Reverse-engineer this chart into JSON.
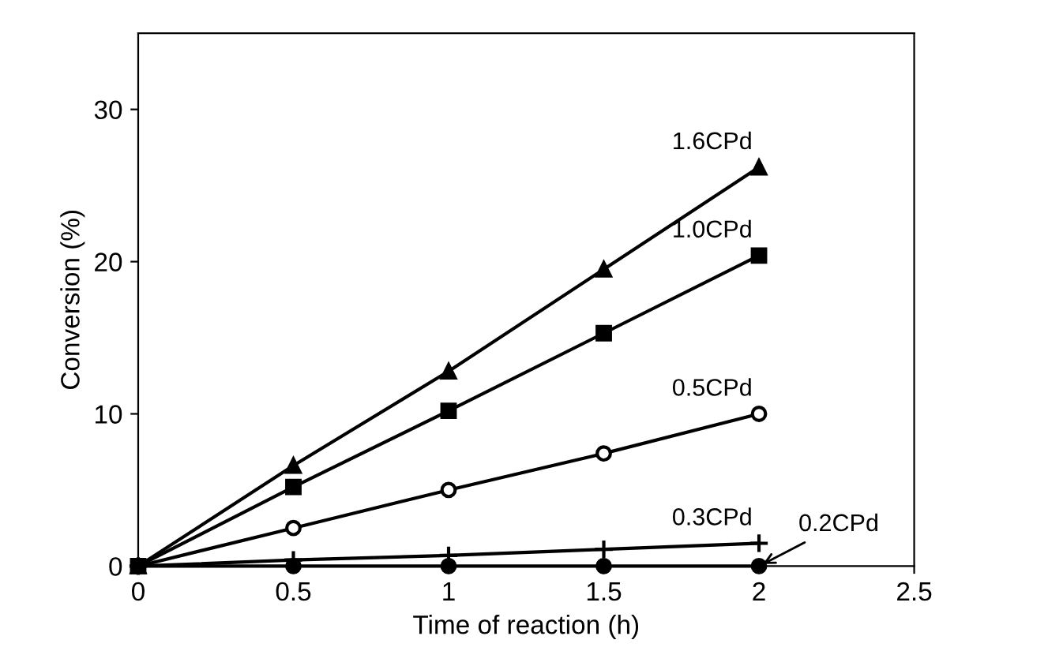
{
  "chart_data": {
    "type": "line",
    "xlabel": "Time of reaction (h)",
    "ylabel": "Conversion (%)",
    "x": [
      0,
      0.5,
      1,
      1.5,
      2
    ],
    "series": [
      {
        "name": "1.6CPd",
        "color": "#000000",
        "marker": "triangle",
        "values": [
          0,
          6.6,
          12.8,
          19.5,
          26.2
        ]
      },
      {
        "name": "1.0CPd",
        "color": "#000000",
        "marker": "square",
        "values": [
          0,
          5.2,
          10.2,
          15.3,
          20.4
        ]
      },
      {
        "name": "0.5CPd",
        "color": "#000000",
        "marker": "circle",
        "values": [
          0,
          2.5,
          5.0,
          7.4,
          10.0
        ]
      },
      {
        "name": "0.3CPd",
        "color": "#000000",
        "marker": "cross",
        "values": [
          0,
          0.4,
          0.7,
          1.1,
          1.5
        ]
      },
      {
        "name": "0.2CPd",
        "color": "#000000",
        "marker": "circle",
        "values": [
          0,
          0,
          0,
          0,
          0
        ]
      }
    ],
    "xlim": [
      0,
      2.5
    ],
    "xticks": [
      0,
      0.5,
      1,
      1.5,
      2,
      2.5
    ],
    "ylim": [
      0,
      35
    ],
    "yticks": [
      0,
      10,
      20,
      30
    ],
    "grid": false,
    "legend": false
  }
}
